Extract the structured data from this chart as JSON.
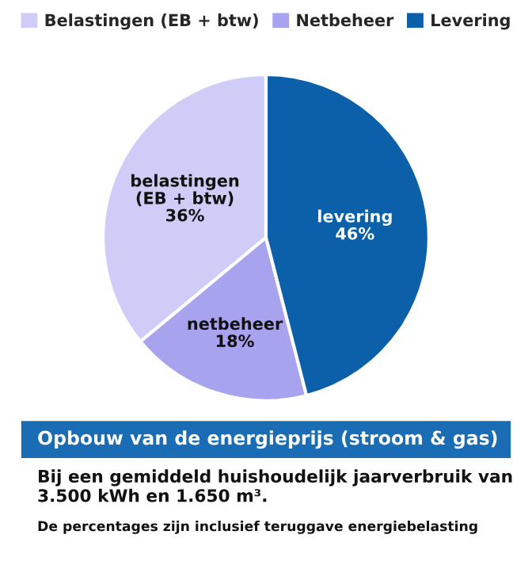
{
  "chart_data": {
    "type": "pie",
    "title": "Opbouw van de energieprijs (stroom & gas)",
    "subtitle": "Bij een gemiddeld huishoudelijk jaarverbruik van 3.500 kWh en 1.650 m³.",
    "annotations": [
      "De percentages zijn inclusief teruggave energiebelasting"
    ],
    "categories": [
      "Belastingen (EB + btw)",
      "Netbeheer",
      "Levering"
    ],
    "values": [
      36,
      18,
      46
    ],
    "colors": [
      "#cfcdf7",
      "#a7a3ef",
      "#0b60a9"
    ],
    "value_labels": [
      "belastingen\n(EB + btw)\n36%",
      "netbeheer\n18%",
      "levering\n46%"
    ],
    "legend": "top"
  }
}
